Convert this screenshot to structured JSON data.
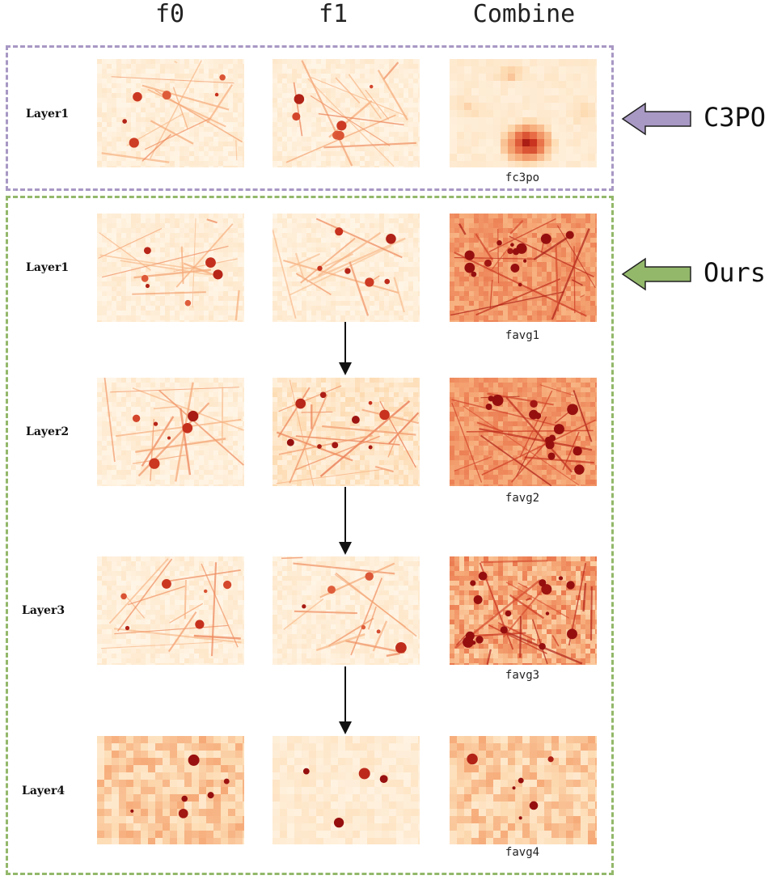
{
  "columns": {
    "c0": "f0",
    "c1": "f1",
    "c2": "Combine"
  },
  "c3po_group": {
    "name": "C3PO",
    "color": "#a898c4",
    "row": {
      "label": "Layer1",
      "caption": "fc3po"
    }
  },
  "ours_group": {
    "name": "Ours",
    "color": "#93b86a",
    "rows": [
      {
        "label": "Layer1",
        "caption": "favg1"
      },
      {
        "label": "Layer2",
        "caption": "favg2"
      },
      {
        "label": "Layer3",
        "caption": "favg3"
      },
      {
        "label": "Layer4",
        "caption": "favg4"
      }
    ]
  }
}
